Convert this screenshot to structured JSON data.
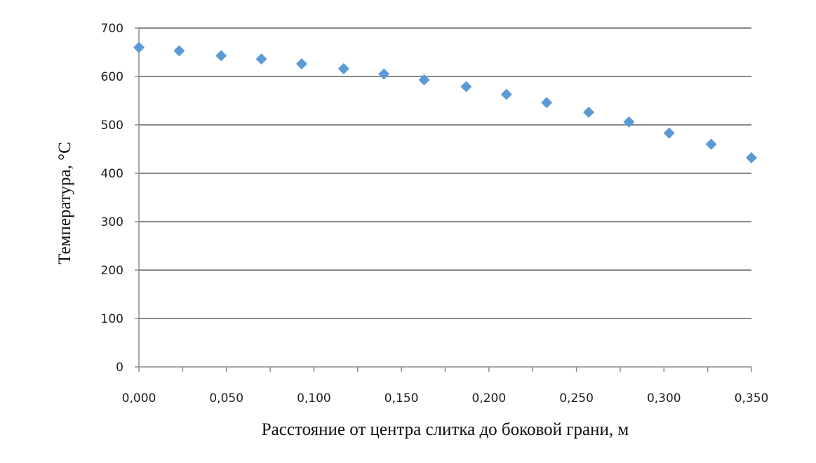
{
  "chart_data": {
    "type": "scatter",
    "title": "",
    "xlabel": "Расстояние от центра слитка до боковой грани, м",
    "ylabel": "Температура,  °C",
    "xlim": [
      0,
      0.35
    ],
    "ylim": [
      0,
      700
    ],
    "x_ticks": [
      "0,000",
      "0,050",
      "0,100",
      "0,150",
      "0,200",
      "0,250",
      "0,300",
      "0,350"
    ],
    "y_ticks": [
      "0",
      "100",
      "200",
      "300",
      "400",
      "500",
      "600",
      "700"
    ],
    "grid": true,
    "legend": "none",
    "marker": "diamond",
    "marker_color": "#5b9bd5",
    "series": [
      {
        "x": [
          0.0,
          0.023,
          0.047,
          0.07,
          0.093,
          0.117,
          0.14,
          0.163,
          0.187,
          0.21,
          0.233,
          0.257,
          0.28,
          0.303,
          0.327,
          0.35
        ],
        "values": [
          660,
          653,
          643,
          636,
          626,
          616,
          605,
          593,
          579,
          563,
          546,
          526,
          506,
          483,
          460,
          432
        ]
      }
    ]
  }
}
